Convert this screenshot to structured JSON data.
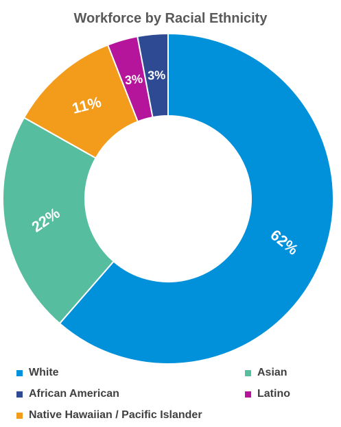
{
  "chart_data": {
    "type": "pie",
    "variant": "donut",
    "title": "Workforce by Racial Ethnicity",
    "slices": [
      {
        "name": "White",
        "value": 62,
        "label": "62%",
        "color": "#0091DA"
      },
      {
        "name": "Asian",
        "value": 22,
        "label": "22%",
        "color": "#56BE9E"
      },
      {
        "name": "Native Hawaiian / Pacific Islander",
        "value": 11,
        "label": "11%",
        "color": "#F39C1C"
      },
      {
        "name": "Latino",
        "value": 3,
        "label": "3%",
        "color": "#B5159B"
      },
      {
        "name": "African American",
        "value": 3,
        "label": "3%",
        "color": "#2E4A92"
      }
    ],
    "legend": {
      "placement": "bottom",
      "items": [
        "White",
        "Asian",
        "African American",
        "Latino",
        "Native Hawaiian / Pacific Islander"
      ]
    }
  }
}
